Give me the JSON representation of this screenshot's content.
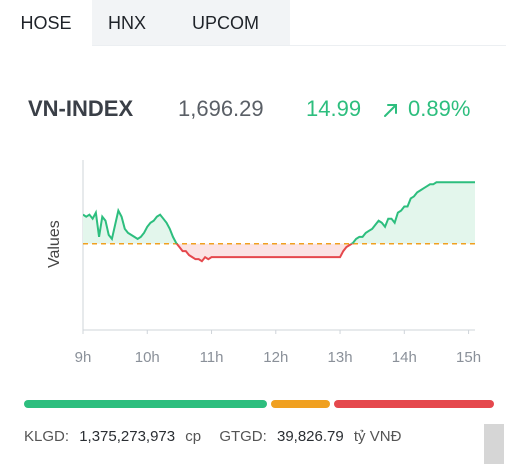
{
  "tabs": [
    "HOSE",
    "HNX",
    "UPCOM"
  ],
  "active_tab": 0,
  "index": {
    "name": "VN-INDEX",
    "value": "1,696.29",
    "change": "14.99",
    "arrow": "up-right-arrow",
    "pct": "0.89%"
  },
  "colors": {
    "up": "#2dbe7e",
    "down": "#e5484d",
    "ref": "#f0a020"
  },
  "chart_data": {
    "type": "line",
    "ylabel": "Values",
    "xlabel": "",
    "categories": [
      "9h",
      "10h",
      "11h",
      "12h",
      "13h",
      "14h",
      "15h"
    ],
    "reference": 1681.3,
    "ylim": [
      1660,
      1702
    ],
    "series": [
      {
        "x": [
          9.0,
          9.05,
          9.1,
          9.15,
          9.2,
          9.25,
          9.3,
          9.35,
          9.4,
          9.45,
          9.5,
          9.55,
          9.6,
          9.65,
          9.7,
          9.75,
          9.8,
          9.85,
          9.9,
          9.95,
          10.0,
          10.05,
          10.1,
          10.15,
          10.2,
          10.25,
          10.3,
          10.35,
          10.4,
          10.45,
          10.5,
          10.55,
          10.6,
          10.65,
          10.7,
          10.75,
          10.8,
          10.85,
          10.9,
          10.95,
          11.0,
          11.05,
          11.1,
          11.15,
          11.2,
          11.25,
          11.3,
          11.35,
          11.4,
          11.5,
          11.75,
          12.0,
          12.25,
          12.5,
          12.75,
          12.95,
          13.0,
          13.05,
          13.1,
          13.15,
          13.2,
          13.25,
          13.3,
          13.35,
          13.4,
          13.45,
          13.5,
          13.55,
          13.6,
          13.65,
          13.7,
          13.75,
          13.8,
          13.85,
          13.9,
          13.95,
          14.0,
          14.05,
          14.1,
          14.15,
          14.2,
          14.25,
          14.3,
          14.35,
          14.4,
          14.45,
          14.5,
          14.55,
          14.6,
          14.65,
          14.7,
          14.75,
          14.8,
          14.85,
          14.9,
          14.95,
          15.0,
          15.05,
          15.1
        ],
        "y": [
          1688.5,
          1688,
          1688.5,
          1687.5,
          1689,
          1683,
          1688,
          1687,
          1683.5,
          1682.5,
          1686,
          1689.5,
          1688,
          1685,
          1684,
          1683.5,
          1683,
          1682.5,
          1683,
          1684,
          1685.5,
          1686.5,
          1687,
          1688,
          1688.5,
          1687.5,
          1686.5,
          1685,
          1683,
          1681.5,
          1680.5,
          1679.5,
          1679.5,
          1678.5,
          1678,
          1677.5,
          1677.5,
          1677,
          1678,
          1677.5,
          1678,
          1678,
          1678,
          1678,
          1678,
          1678,
          1678,
          1678,
          1678,
          1678,
          1678,
          1678,
          1678,
          1678,
          1678,
          1678,
          1678,
          1679.5,
          1680.5,
          1681,
          1681.5,
          1682.5,
          1683,
          1683,
          1684,
          1684.5,
          1685,
          1686,
          1687,
          1686.5,
          1685.5,
          1687.5,
          1687.5,
          1686.5,
          1689,
          1689.5,
          1690.5,
          1690.5,
          1692.5,
          1693,
          1694,
          1694.5,
          1695,
          1695.5,
          1696,
          1696,
          1696.5,
          1696.5,
          1696.5,
          1696.5,
          1696.5,
          1696.5,
          1696.5,
          1696.5,
          1696.5,
          1696.5,
          1696.5,
          1696.5,
          1696.5
        ]
      }
    ]
  },
  "bars": [
    {
      "name": "advancers",
      "fraction": 0.525
    },
    {
      "name": "unchanged",
      "fraction": 0.135
    },
    {
      "name": "decliners",
      "fraction": 0.34
    }
  ],
  "stats": {
    "klgd_label": "KLGD:",
    "klgd_value": "1,375,273,973",
    "klgd_unit": "cp",
    "gtgd_label": "GTGD:",
    "gtgd_value": "39,826.79",
    "gtgd_unit": "tỷ VNĐ"
  }
}
